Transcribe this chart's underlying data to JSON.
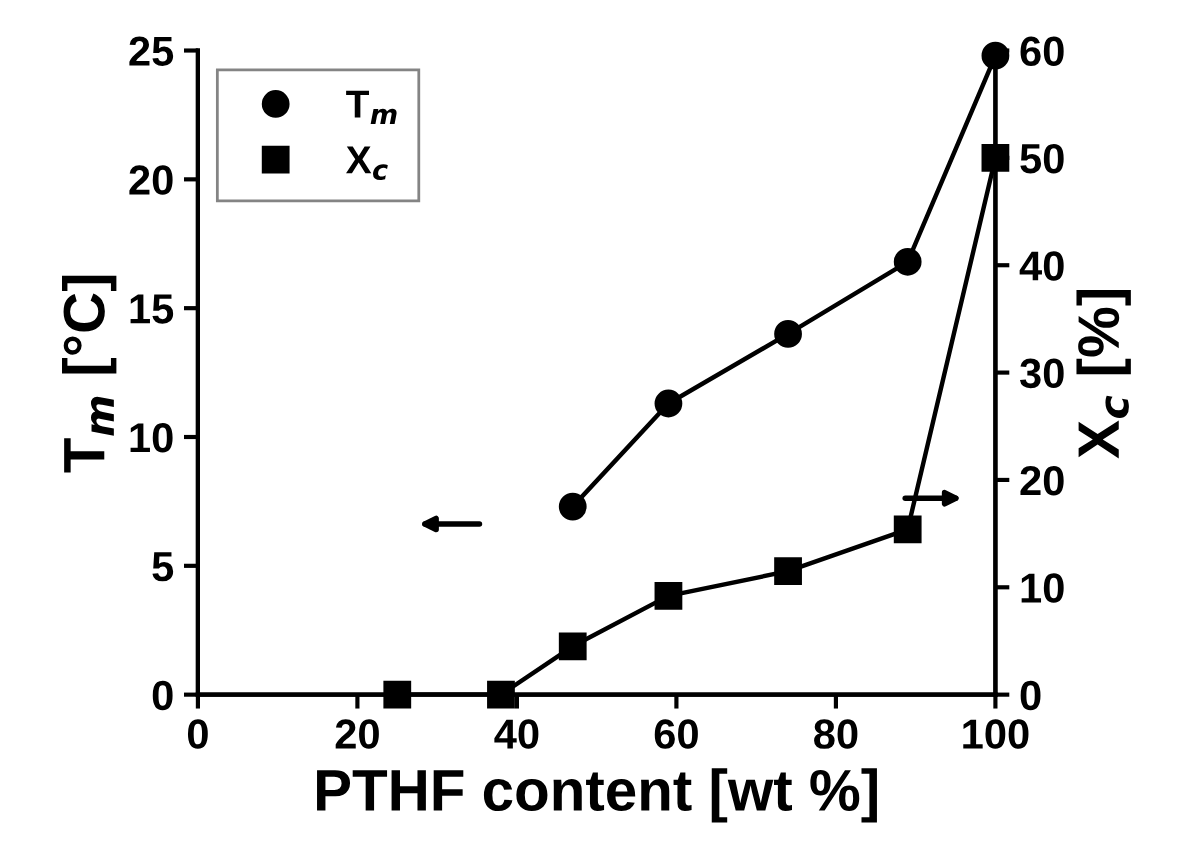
{
  "chart_data": {
    "type": "line",
    "xlabel": "PTHF content [wt %]",
    "ylabel": "T$_{m}$ [°C]",
    "y2label": "X$_{c}$ [%]",
    "x": [
      25,
      38,
      47,
      59,
      74,
      89,
      100
    ],
    "series": [
      {
        "name": "T$_{m}$",
        "color": "#000000",
        "marker": "circle",
        "values": [
          null,
          null,
          7.3,
          11.3,
          14.0,
          16.8,
          24.8
        ]
      },
      {
        "name": "X$_{c}$",
        "color": "#000000",
        "marker": "square",
        "axis": "y2",
        "values": [
          0,
          0,
          4.5,
          9.2,
          11.5,
          15.4,
          50
        ]
      }
    ],
    "xlim": [
      0,
      100
    ],
    "xticks": [
      0,
      20,
      40,
      60,
      80,
      100
    ],
    "ylim": [
      0,
      25
    ],
    "yticks": [
      0,
      5,
      10,
      15,
      20,
      25
    ],
    "y2lim": [
      0,
      60
    ],
    "y2ticks": [
      0,
      10,
      20,
      30,
      40,
      50,
      60
    ],
    "legend": "top left",
    "grid": false,
    "line_style": "solid"
  }
}
